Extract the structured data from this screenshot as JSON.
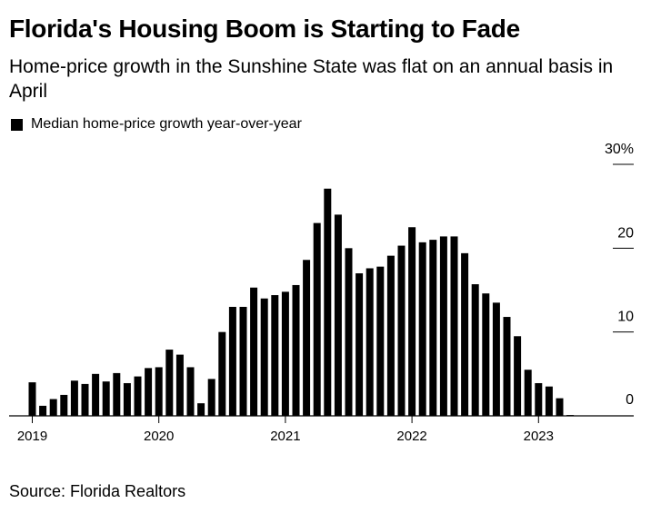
{
  "header": {
    "title": "Florida's Housing Boom is Starting to Fade",
    "subtitle": "Home-price growth in the Sunshine State was flat on an annual basis in April"
  },
  "legend": {
    "label": "Median home-price growth year-over-year"
  },
  "source": "Source: Florida Realtors",
  "chart_data": {
    "type": "bar",
    "title": "Florida's Housing Boom is Starting to Fade",
    "subtitle": "Home-price growth in the Sunshine State was flat on an annual basis in April",
    "xlabel": "",
    "ylabel": "",
    "ylim": [
      0,
      30
    ],
    "y_ticks": [
      0,
      10,
      20,
      30
    ],
    "y_tick_labels": [
      "0",
      "10",
      "20",
      "30%"
    ],
    "x_ticks": [
      "2019",
      "2020",
      "2021",
      "2022",
      "2023"
    ],
    "axis_position": "right",
    "grid": false,
    "legend_position": "top-left",
    "bar_color": "#000000",
    "series": [
      {
        "name": "Median home-price growth year-over-year",
        "categories": [
          "2019-01",
          "2019-02",
          "2019-03",
          "2019-04",
          "2019-05",
          "2019-06",
          "2019-07",
          "2019-08",
          "2019-09",
          "2019-10",
          "2019-11",
          "2019-12",
          "2020-01",
          "2020-02",
          "2020-03",
          "2020-04",
          "2020-05",
          "2020-06",
          "2020-07",
          "2020-08",
          "2020-09",
          "2020-10",
          "2020-11",
          "2020-12",
          "2021-01",
          "2021-02",
          "2021-03",
          "2021-04",
          "2021-05",
          "2021-06",
          "2021-07",
          "2021-08",
          "2021-09",
          "2021-10",
          "2021-11",
          "2021-12",
          "2022-01",
          "2022-02",
          "2022-03",
          "2022-04",
          "2022-05",
          "2022-06",
          "2022-07",
          "2022-08",
          "2022-09",
          "2022-10",
          "2022-11",
          "2022-12",
          "2023-01",
          "2023-02",
          "2023-03",
          "2023-04"
        ],
        "values": [
          4.0,
          1.2,
          2.0,
          2.5,
          4.2,
          3.8,
          5.0,
          4.1,
          5.1,
          3.9,
          4.7,
          5.7,
          5.8,
          7.9,
          7.3,
          5.8,
          1.5,
          4.4,
          10.0,
          13.0,
          13.0,
          15.3,
          14.0,
          14.4,
          14.8,
          15.6,
          18.6,
          23.0,
          27.1,
          24.0,
          20.0,
          17.0,
          17.6,
          17.8,
          19.1,
          20.3,
          22.5,
          20.7,
          21.0,
          21.4,
          21.4,
          19.4,
          15.7,
          14.6,
          13.5,
          11.8,
          9.5,
          5.5,
          3.9,
          3.5,
          2.1,
          0.1
        ]
      }
    ]
  }
}
